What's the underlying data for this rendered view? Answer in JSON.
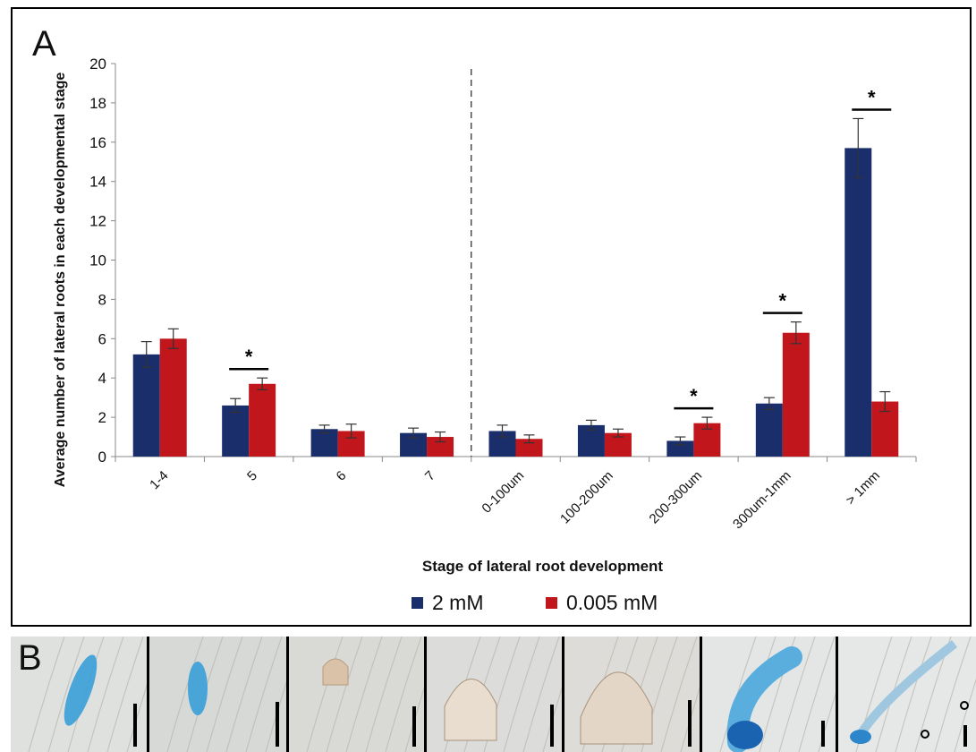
{
  "panel_a_label": "A",
  "panel_b_label": "B",
  "chart_data": {
    "type": "bar",
    "title": "",
    "xlabel": "Stage of lateral root development",
    "ylabel": "Average number of lateral roots in each developmental stage",
    "ylim": [
      0,
      20
    ],
    "yticks": [
      0,
      2,
      4,
      6,
      8,
      10,
      12,
      14,
      16,
      18,
      20
    ],
    "grid": false,
    "legend_position": "bottom",
    "categories": [
      "1-4",
      "5",
      "6",
      "7",
      "0-100um",
      "100-200um",
      "200-300um",
      "300um-1mm",
      "> 1mm"
    ],
    "series": [
      {
        "name": "2 mM",
        "color": "#1a2e6b",
        "values": [
          5.2,
          2.6,
          1.4,
          1.2,
          1.3,
          1.6,
          0.8,
          2.7,
          15.7
        ],
        "errors": [
          0.65,
          0.35,
          0.2,
          0.25,
          0.3,
          0.25,
          0.2,
          0.3,
          1.5
        ]
      },
      {
        "name": "0.005 mM",
        "color": "#c0161c",
        "values": [
          6.0,
          3.7,
          1.3,
          1.0,
          0.9,
          1.2,
          1.7,
          6.3,
          2.8
        ],
        "errors": [
          0.5,
          0.3,
          0.35,
          0.25,
          0.2,
          0.2,
          0.3,
          0.55,
          0.5
        ]
      }
    ],
    "significance": [
      {
        "category_index": 1,
        "label": "*"
      },
      {
        "category_index": 6,
        "label": "*"
      },
      {
        "category_index": 7,
        "label": "*"
      },
      {
        "category_index": 8,
        "label": "*"
      }
    ],
    "divider_after_category_index": 3
  },
  "panel_b": {
    "background_colors": [
      "#dfe1df",
      "#d7d9d6",
      "#d9d9d6",
      "#dcdcda",
      "#dedcd8",
      "#e4e6e6",
      "#e6e8e8"
    ]
  }
}
